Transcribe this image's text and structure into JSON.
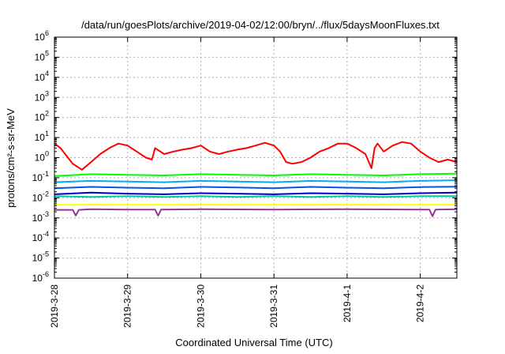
{
  "chart_data": {
    "type": "line",
    "title": "/data/run/goesPlots/archive/2019-04-02/12:00/bryn/../flux/5daysMoonFluxes.txt",
    "xlabel": "Coordinated Universal Time (UTC)",
    "ylabel": "protons/cm²-s-sr-MeV",
    "xlim": [
      "2019-03-28T00:00",
      "2019-04-02T12:00"
    ],
    "ylim": [
      1e-06,
      1000000.0
    ],
    "yscale": "log",
    "grid": true,
    "x_tick_labels": [
      "2019-3-28",
      "2019-3-29",
      "2019-3-30",
      "2019-3-31",
      "2019-4-1",
      "2019-4-2"
    ],
    "y_tick_labels": [
      {
        "base": "10",
        "exp": "-6"
      },
      {
        "base": "10",
        "exp": "-5"
      },
      {
        "base": "10",
        "exp": "-4"
      },
      {
        "base": "10",
        "exp": "-3"
      },
      {
        "base": "10",
        "exp": "-2"
      },
      {
        "base": "10",
        "exp": "-1"
      },
      {
        "base": "10",
        "exp": "0"
      },
      {
        "base": "10",
        "exp": "1"
      },
      {
        "base": "10",
        "exp": "2"
      },
      {
        "base": "10",
        "exp": "3"
      },
      {
        "base": "10",
        "exp": "4"
      },
      {
        "base": "10",
        "exp": "5"
      },
      {
        "base": "10",
        "exp": "6"
      }
    ],
    "series": [
      {
        "color": "#ff0000",
        "x": [
          "2019-03-28T00:00",
          "2019-03-28T02:00",
          "2019-03-28T04:00",
          "2019-03-28T06:00",
          "2019-03-28T09:00",
          "2019-03-28T12:00",
          "2019-03-28T15:00",
          "2019-03-28T18:00",
          "2019-03-28T21:00",
          "2019-03-29T00:00",
          "2019-03-29T03:00",
          "2019-03-29T06:00",
          "2019-03-29T08:00",
          "2019-03-29T09:00",
          "2019-03-29T12:00",
          "2019-03-29T15:00",
          "2019-03-29T18:00",
          "2019-03-29T21:00",
          "2019-03-30T00:00",
          "2019-03-30T03:00",
          "2019-03-30T06:00",
          "2019-03-30T09:00",
          "2019-03-30T12:00",
          "2019-03-30T15:00",
          "2019-03-30T18:00",
          "2019-03-30T21:00",
          "2019-03-31T00:00",
          "2019-03-31T02:00",
          "2019-03-31T04:00",
          "2019-03-31T06:00",
          "2019-03-31T09:00",
          "2019-03-31T12:00",
          "2019-03-31T15:00",
          "2019-03-31T18:00",
          "2019-03-31T21:00",
          "2019-04-01T00:00",
          "2019-04-01T03:00",
          "2019-04-01T06:00",
          "2019-04-01T08:00",
          "2019-04-01T09:00",
          "2019-04-01T10:00",
          "2019-04-01T12:00",
          "2019-04-01T15:00",
          "2019-04-01T18:00",
          "2019-04-01T21:00",
          "2019-04-02T00:00",
          "2019-04-02T03:00",
          "2019-04-02T06:00",
          "2019-04-02T09:00",
          "2019-04-02T12:00"
        ],
        "y": [
          5,
          3,
          1.2,
          0.5,
          0.25,
          0.6,
          1.5,
          3,
          5,
          4,
          2,
          1,
          0.8,
          3,
          1.5,
          2,
          2.5,
          3,
          4,
          2,
          1.5,
          2,
          2.5,
          3,
          4,
          5.5,
          4,
          2,
          0.6,
          0.5,
          0.6,
          1,
          2,
          3,
          5,
          5,
          3,
          1.5,
          0.3,
          3,
          5,
          2,
          4,
          6,
          5,
          2,
          1,
          0.6,
          0.8,
          0.6
        ]
      },
      {
        "color": "#00ff00",
        "x": [
          "2019-03-28T00:00",
          "2019-03-28T12:00",
          "2019-03-29T00:00",
          "2019-03-29T12:00",
          "2019-03-30T00:00",
          "2019-03-30T12:00",
          "2019-03-31T00:00",
          "2019-03-31T12:00",
          "2019-04-01T00:00",
          "2019-04-01T12:00",
          "2019-04-02T00:00",
          "2019-04-02T12:00"
        ],
        "y": [
          0.12,
          0.15,
          0.14,
          0.13,
          0.15,
          0.14,
          0.13,
          0.15,
          0.14,
          0.13,
          0.15,
          0.16
        ]
      },
      {
        "color": "#00aaff",
        "x": [
          "2019-03-28T00:00",
          "2019-03-28T12:00",
          "2019-03-29T00:00",
          "2019-03-29T12:00",
          "2019-03-30T00:00",
          "2019-03-30T12:00",
          "2019-03-31T00:00",
          "2019-03-31T12:00",
          "2019-04-01T00:00",
          "2019-04-01T12:00",
          "2019-04-02T00:00",
          "2019-04-02T12:00"
        ],
        "y": [
          0.06,
          0.07,
          0.065,
          0.06,
          0.07,
          0.065,
          0.06,
          0.07,
          0.065,
          0.06,
          0.07,
          0.075
        ]
      },
      {
        "color": "#0055ee",
        "x": [
          "2019-03-28T00:00",
          "2019-03-28T12:00",
          "2019-03-29T00:00",
          "2019-03-29T12:00",
          "2019-03-30T00:00",
          "2019-03-30T12:00",
          "2019-03-31T00:00",
          "2019-03-31T12:00",
          "2019-04-01T00:00",
          "2019-04-01T12:00",
          "2019-04-02T00:00",
          "2019-04-02T12:00"
        ],
        "y": [
          0.03,
          0.035,
          0.032,
          0.03,
          0.035,
          0.033,
          0.03,
          0.035,
          0.032,
          0.03,
          0.034,
          0.036
        ]
      },
      {
        "color": "#00cc99",
        "x": [
          "2019-03-28T00:00",
          "2019-03-28T12:00",
          "2019-03-29T00:00",
          "2019-03-29T12:00",
          "2019-03-30T00:00",
          "2019-03-30T12:00",
          "2019-03-31T00:00",
          "2019-03-31T12:00",
          "2019-04-01T00:00",
          "2019-04-01T12:00",
          "2019-04-02T00:00",
          "2019-04-02T12:00"
        ],
        "y": [
          0.012,
          0.011,
          0.012,
          0.011,
          0.012,
          0.011,
          0.012,
          0.011,
          0.012,
          0.011,
          0.012,
          0.012
        ]
      },
      {
        "color": "#0000cc",
        "x": [
          "2019-03-28T00:00",
          "2019-03-28T12:00",
          "2019-03-29T00:00",
          "2019-03-29T12:00",
          "2019-03-30T00:00",
          "2019-03-30T12:00",
          "2019-03-31T00:00",
          "2019-03-31T12:00",
          "2019-04-01T00:00",
          "2019-04-01T12:00",
          "2019-04-02T00:00",
          "2019-04-02T12:00"
        ],
        "y": [
          0.015,
          0.018,
          0.016,
          0.015,
          0.017,
          0.016,
          0.015,
          0.017,
          0.016,
          0.015,
          0.017,
          0.018
        ]
      },
      {
        "color": "#ffff00",
        "x": [
          "2019-03-28T00:00",
          "2019-03-29T00:00",
          "2019-03-30T00:00",
          "2019-03-31T00:00",
          "2019-04-01T00:00",
          "2019-04-02T00:00",
          "2019-04-02T12:00"
        ],
        "y": [
          0.0045,
          0.0045,
          0.0045,
          0.0045,
          0.0045,
          0.0045,
          0.0045
        ]
      },
      {
        "color": "#993399",
        "x": [
          "2019-03-28T00:00",
          "2019-03-28T06:00",
          "2019-03-28T07:00",
          "2019-03-28T08:00",
          "2019-03-28T12:00",
          "2019-03-29T00:00",
          "2019-03-29T09:00",
          "2019-03-29T10:00",
          "2019-03-29T11:00",
          "2019-03-30T00:00",
          "2019-03-31T00:00",
          "2019-04-01T00:00",
          "2019-04-02T00:00",
          "2019-04-02T03:00",
          "2019-04-02T04:00",
          "2019-04-02T05:00",
          "2019-04-02T12:00"
        ],
        "y": [
          0.0025,
          0.0025,
          0.0013,
          0.0025,
          0.0027,
          0.0026,
          0.0026,
          0.0013,
          0.0026,
          0.0027,
          0.0026,
          0.0027,
          0.0026,
          0.0026,
          0.0012,
          0.0026,
          0.0027
        ]
      }
    ]
  }
}
